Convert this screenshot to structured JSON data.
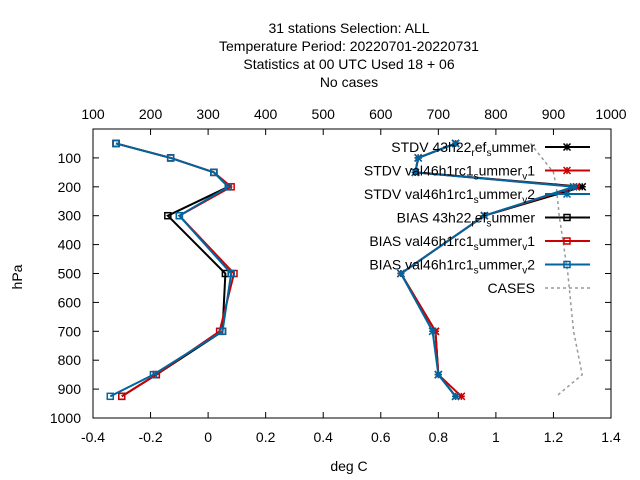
{
  "chart_data": {
    "type": "line",
    "title_lines": [
      "31 stations Selection: ALL",
      "Temperature  Period: 20220701-20220731",
      "Statistics at 00 UTC  Used  18  + 06",
      "No cases"
    ],
    "xlabel": "deg C",
    "ylabel": "hPa",
    "xlim": [
      -0.4,
      1.4
    ],
    "ylim": [
      1000,
      0
    ],
    "x2lim": [
      100,
      1000
    ],
    "xticks": [
      "-0.4",
      "-0.2",
      "0",
      "0.2",
      "0.4",
      "0.6",
      "0.8",
      "1",
      "1.2",
      "1.4"
    ],
    "x2ticks": [
      "100",
      "200",
      "300",
      "400",
      "500",
      "600",
      "700",
      "800",
      "900",
      "1000"
    ],
    "yticks": [
      "100",
      "200",
      "300",
      "400",
      "500",
      "600",
      "700",
      "800",
      "900",
      "1000"
    ],
    "legend_position": "top-right",
    "grid": false,
    "levels": [
      50,
      100,
      150,
      200,
      300,
      500,
      700,
      850,
      925
    ],
    "series": [
      {
        "name_main": "STDV 43h22",
        "name_parts": [
          [
            "r",
            "ef"
          ],
          [
            "s",
            "ummer"
          ]
        ],
        "axis": "bottom",
        "color": "#000000",
        "marker": "star",
        "values": [
          0.86,
          0.73,
          0.72,
          1.3,
          0.96,
          0.67,
          0.79,
          0.8,
          0.86
        ]
      },
      {
        "name_main": "STDV val46h1rc1",
        "name_parts": [
          [
            "s",
            "ummer"
          ],
          [
            "v",
            "1"
          ]
        ],
        "axis": "bottom",
        "color": "#cc0000",
        "marker": "star",
        "values": [
          0.86,
          0.73,
          0.72,
          1.28,
          0.96,
          0.67,
          0.79,
          0.8,
          0.88
        ]
      },
      {
        "name_main": "STDV val46h1rc1",
        "name_parts": [
          [
            "s",
            "ummer"
          ],
          [
            "v",
            "2"
          ]
        ],
        "axis": "bottom",
        "color": "#0066a0",
        "marker": "star",
        "values": [
          0.86,
          0.73,
          0.72,
          1.27,
          0.96,
          0.67,
          0.78,
          0.8,
          0.86
        ]
      },
      {
        "name_main": "BIAS 43h22",
        "name_parts": [
          [
            "r",
            "ef"
          ],
          [
            "s",
            "ummer"
          ]
        ],
        "axis": "bottom",
        "color": "#000000",
        "marker": "square",
        "values": [
          -0.32,
          -0.13,
          0.02,
          0.07,
          -0.14,
          0.06,
          0.05,
          -0.18,
          -0.3
        ]
      },
      {
        "name_main": "BIAS val46h1rc1",
        "name_parts": [
          [
            "s",
            "ummer"
          ],
          [
            "v",
            "1"
          ]
        ],
        "axis": "bottom",
        "color": "#cc0000",
        "marker": "square",
        "values": [
          -0.32,
          -0.13,
          0.02,
          0.08,
          -0.1,
          0.09,
          0.04,
          -0.18,
          -0.3
        ]
      },
      {
        "name_main": "BIAS val46h1rc1",
        "name_parts": [
          [
            "s",
            "ummer"
          ],
          [
            "v",
            "2"
          ]
        ],
        "axis": "bottom",
        "color": "#0066a0",
        "marker": "square",
        "values": [
          -0.32,
          -0.13,
          0.02,
          0.07,
          -0.1,
          0.08,
          0.05,
          -0.19,
          -0.34
        ]
      },
      {
        "name_main": "CASES",
        "name_parts": [],
        "axis": "top",
        "color": "#999999",
        "marker": "none",
        "dashed": true,
        "values": [
          860,
          880,
          900,
          905,
          910,
          925,
          935,
          950,
          905
        ]
      }
    ]
  }
}
